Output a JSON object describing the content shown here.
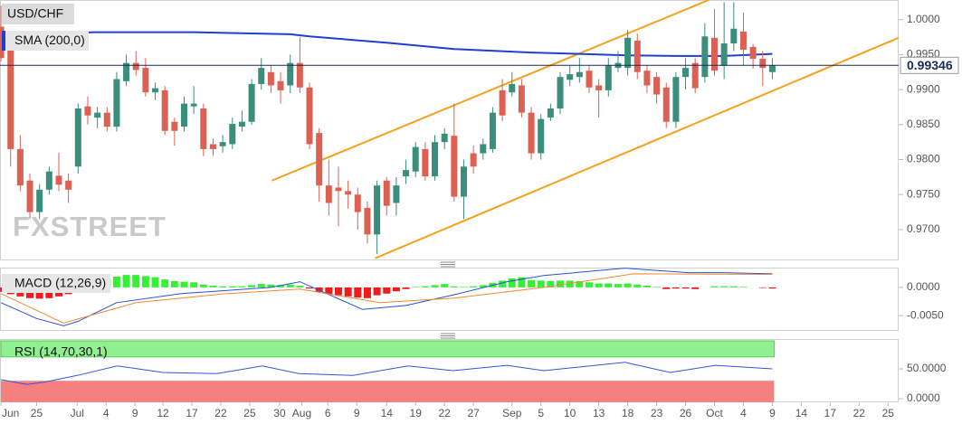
{
  "chart_data": [
    {
      "type": "candlestick",
      "title": "USD/CHF",
      "watermark": "FXSTREET",
      "up_color": "#3a8f7c",
      "down_color": "#dc6153",
      "open": [
        0.999,
        0.9964,
        0.9815,
        0.977,
        0.9725,
        0.9757,
        0.9777,
        0.977,
        0.979,
        0.9876,
        0.986,
        0.9867,
        0.9847,
        0.9912,
        0.9938,
        0.9931,
        0.9896,
        0.9899,
        0.9854,
        0.9847,
        0.9876,
        0.9873,
        0.9822,
        0.9819,
        0.9822,
        0.9847,
        0.9854,
        0.9908,
        0.9925,
        0.9912,
        0.9906,
        0.9938,
        0.9903,
        0.9838,
        0.9763,
        0.976,
        0.9755,
        0.975,
        0.9731,
        0.9693,
        0.977,
        0.9738,
        0.9776,
        0.9783,
        0.9815,
        0.9776,
        0.9825,
        0.9834,
        0.9747,
        0.9809,
        0.9809,
        0.9815,
        0.9899,
        0.9896,
        0.9906,
        0.9867,
        0.9809,
        0.986,
        0.9873,
        0.9914,
        0.9918,
        0.9927,
        0.9906,
        0.9899,
        0.9931,
        0.9931,
        0.997,
        0.9927,
        0.9918,
        0.9903,
        0.9854,
        0.9918,
        0.9938,
        0.9918,
        0.9974,
        0.9934,
        0.9966,
        0.9983,
        0.9961,
        0.9944,
        0.9925
      ],
      "high": [
        1.002,
        0.9975,
        0.9835,
        0.978,
        0.9765,
        0.979,
        0.981,
        0.978,
        0.988,
        0.989,
        0.9875,
        0.9875,
        0.9925,
        0.995,
        0.9955,
        0.9945,
        0.991,
        0.9905,
        0.986,
        0.989,
        0.9905,
        0.988,
        0.983,
        0.9835,
        0.986,
        0.987,
        0.9915,
        0.9945,
        0.9935,
        0.9925,
        0.995,
        0.9975,
        0.991,
        0.9845,
        0.98,
        0.979,
        0.977,
        0.976,
        0.974,
        0.977,
        0.9775,
        0.9775,
        0.98,
        0.9825,
        0.9825,
        0.9835,
        0.9845,
        0.988,
        0.98,
        0.982,
        0.983,
        0.9875,
        0.9915,
        0.9925,
        0.9915,
        0.9875,
        0.9865,
        0.988,
        0.9925,
        0.9935,
        0.9945,
        0.9935,
        0.9915,
        0.9945,
        0.9955,
        0.9985,
        0.998,
        0.9935,
        0.9925,
        0.991,
        0.9925,
        0.9945,
        0.9945,
        0.9995,
        1.0015,
        1.0025,
        1.0025,
        1.001,
        0.9965,
        0.9955,
        0.9945
      ],
      "low": [
        0.994,
        0.979,
        0.9755,
        0.9715,
        0.9715,
        0.975,
        0.9755,
        0.9738,
        0.978,
        0.985,
        0.9845,
        0.984,
        0.984,
        0.9905,
        0.992,
        0.989,
        0.9885,
        0.9835,
        0.982,
        0.984,
        0.9865,
        0.9805,
        0.9805,
        0.981,
        0.9815,
        0.984,
        0.985,
        0.99,
        0.9895,
        0.988,
        0.9895,
        0.9895,
        0.9815,
        0.974,
        0.972,
        0.9705,
        0.973,
        0.97,
        0.968,
        0.9665,
        0.972,
        0.972,
        0.9765,
        0.9775,
        0.977,
        0.977,
        0.9815,
        0.974,
        0.9715,
        0.978,
        0.98,
        0.981,
        0.9855,
        0.989,
        0.986,
        0.98,
        0.98,
        0.9855,
        0.9865,
        0.9905,
        0.991,
        0.9895,
        0.986,
        0.989,
        0.9925,
        0.992,
        0.9915,
        0.9895,
        0.988,
        0.9845,
        0.9845,
        0.99,
        0.9895,
        0.991,
        0.992,
        0.9915,
        0.9955,
        0.9935,
        0.993,
        0.9905,
        0.9915
      ],
      "close": [
        0.9945,
        0.9815,
        0.9763,
        0.9725,
        0.9757,
        0.9783,
        0.9764,
        0.9757,
        0.9873,
        0.9863,
        0.9867,
        0.9847,
        0.9915,
        0.9938,
        0.9928,
        0.9896,
        0.9902,
        0.9841,
        0.9841,
        0.988,
        0.988,
        0.9815,
        0.9815,
        0.9825,
        0.9851,
        0.9854,
        0.9908,
        0.9931,
        0.9906,
        0.9899,
        0.9938,
        0.9903,
        0.9822,
        0.9763,
        0.9738,
        0.9755,
        0.975,
        0.9725,
        0.9693,
        0.9763,
        0.9734,
        0.9763,
        0.9785,
        0.9818,
        0.9776,
        0.9825,
        0.9837,
        0.9747,
        0.979,
        0.979,
        0.9822,
        0.9867,
        0.9863,
        0.9908,
        0.9867,
        0.9809,
        0.9858,
        0.9873,
        0.9918,
        0.9922,
        0.9925,
        0.9903,
        0.9899,
        0.9935,
        0.9938,
        0.9974,
        0.9925,
        0.9906,
        0.9893,
        0.9854,
        0.9918,
        0.9931,
        0.9902,
        0.9976,
        0.9927,
        0.9966,
        0.9987,
        0.9957,
        0.9944,
        0.9931,
        0.99346
      ],
      "series": [
        {
          "name": "SMA (200,0)",
          "color": "#1f3fd1",
          "x": [
            0,
            10,
            20,
            30,
            32,
            40,
            47,
            55,
            60,
            65,
            70,
            75,
            80
          ],
          "values": [
            0.998,
            0.9982,
            0.9982,
            0.9979,
            0.9976,
            0.9967,
            0.9958,
            0.9953,
            0.9951,
            0.9949,
            0.9948,
            0.9948,
            0.9951
          ]
        }
      ],
      "trendlines": [
        {
          "color": "#f5a11c",
          "x": [
            28.1,
            73.4
          ],
          "y": [
            0.977,
            1.0028
          ]
        },
        {
          "color": "#f5a11c",
          "x": [
            38.8,
            93.1
          ],
          "y": [
            0.9659,
            0.9974
          ]
        }
      ],
      "xlim": [
        -0.1,
        93.1
      ],
      "ylim": [
        0.9656,
        1.0028
      ],
      "yticks": [
        {
          "value": 1,
          "label": "1.0000"
        },
        {
          "value": 0.995,
          "label": "0.9950"
        },
        {
          "value": 0.99,
          "label": "0.9900"
        },
        {
          "value": 0.985,
          "label": "0.9850"
        },
        {
          "value": 0.98,
          "label": "0.9800"
        },
        {
          "value": 0.975,
          "label": "0.9750"
        },
        {
          "value": 0.97,
          "label": "0.9700"
        }
      ],
      "xticks": [
        {
          "value": 0,
          "label": "Jun"
        },
        {
          "value": 3.7,
          "label": "25"
        },
        {
          "value": 7.9,
          "label": "Jul"
        },
        {
          "value": 10.9,
          "label": "4"
        },
        {
          "value": 13.9,
          "label": "9"
        },
        {
          "value": 16.8,
          "label": "12"
        },
        {
          "value": 19.8,
          "label": "17"
        },
        {
          "value": 22.8,
          "label": "22"
        },
        {
          "value": 25.8,
          "label": "25"
        },
        {
          "value": 28.9,
          "label": "30"
        },
        {
          "value": 31.2,
          "label": "Aug"
        },
        {
          "value": 33.9,
          "label": "6"
        },
        {
          "value": 36.9,
          "label": "9"
        },
        {
          "value": 40,
          "label": "14"
        },
        {
          "value": 43,
          "label": "19"
        },
        {
          "value": 46,
          "label": "22"
        },
        {
          "value": 49,
          "label": "27"
        },
        {
          "value": 53,
          "label": "Sep"
        },
        {
          "value": 56,
          "label": "5"
        },
        {
          "value": 59,
          "label": "10"
        },
        {
          "value": 62,
          "label": "13"
        },
        {
          "value": 65,
          "label": "18"
        },
        {
          "value": 68,
          "label": "23"
        },
        {
          "value": 71,
          "label": "26"
        },
        {
          "value": 74,
          "label": "Oct"
        },
        {
          "value": 77,
          "label": "4"
        },
        {
          "value": 80,
          "label": "9"
        },
        {
          "value": 83,
          "label": "14"
        },
        {
          "value": 86,
          "label": "17"
        },
        {
          "value": 89,
          "label": "22"
        },
        {
          "value": 92,
          "label": "25"
        }
      ]
    },
    {
      "type": "macd",
      "title": "MACD (12,26,9)",
      "up_color": "#36ef36",
      "down_color": "#ee1c1c",
      "histogram": [
        -0.0008,
        -0.0012,
        -0.0016,
        -0.0019,
        -0.002,
        -0.0019,
        -0.0016,
        -0.0012,
        0.0003,
        0.0008,
        0.0012,
        0.0015,
        0.0019,
        0.0022,
        0.0022,
        0.002,
        0.0018,
        0.0014,
        0.0011,
        0.001,
        0.0009,
        0.0005,
        0.0003,
        0.0002,
        0.0002,
        0.0002,
        0.0004,
        0.0006,
        0.0005,
        0.0004,
        0.0005,
        0.0003,
        -0.0002,
        -0.0008,
        -0.0012,
        -0.0014,
        -0.0016,
        -0.0018,
        -0.0019,
        -0.0014,
        -0.0011,
        -0.0007,
        -0.0003,
        0.0001,
        0.0002,
        0.0004,
        0.0006,
        0.0002,
        0.0001,
        0.0002,
        0.0004,
        0.0008,
        0.0012,
        0.0016,
        0.0018,
        0.0013,
        0.0012,
        0.0011,
        0.0012,
        0.0012,
        0.0011,
        0.0009,
        0.0007,
        0.0007,
        0.0006,
        0.0007,
        0.0005,
        0.0003,
        0.0001,
        -0.0003,
        -0.0002,
        -0.0002,
        -0.0003,
        0,
        0.0002,
        0.0002,
        0.0002,
        0.0001,
        0,
        -0.0001,
        -0.0002
      ],
      "series": [
        {
          "color": "#2452dc",
          "x": [
            0,
            3.7,
            6.5,
            8,
            12,
            18.7,
            28,
            31,
            37.5,
            42,
            47,
            52.5,
            56.3,
            64.7,
            71.3,
            75,
            80
          ],
          "values": [
            -0.0027,
            -0.0055,
            -0.0068,
            -0.006,
            -0.0027,
            -0.0011,
            0,
            0.001,
            -0.0039,
            -0.0032,
            -0.0013,
            0.001,
            0.0021,
            0.0034,
            0.0026,
            0.0026,
            0.0024
          ]
        },
        {
          "color": "#f08a30",
          "x": [
            0,
            6.5,
            14,
            23.4,
            31,
            39.3,
            47,
            56.3,
            65.6,
            80
          ],
          "values": [
            -0.0011,
            -0.0063,
            -0.0027,
            -0.0011,
            -0.0003,
            -0.0027,
            -0.0019,
            0,
            0.0024,
            0.0023
          ]
        }
      ],
      "ylim": [
        -0.0077,
        0.0035
      ],
      "yticks": [
        {
          "value": 0,
          "label": "0.0000"
        },
        {
          "value": -0.005,
          "label": "-0.0050"
        }
      ]
    },
    {
      "type": "rsi",
      "title": "RSI (14,70,30,1)",
      "overbought": 70,
      "oversold": 30,
      "overbought_color": "#8ef08e",
      "oversold_color": "#f58080",
      "series": [
        {
          "color": "#3355dd",
          "x": [
            0,
            2.7,
            4.6,
            7.9,
            12.1,
            16.8,
            22.4,
            27.1,
            30.9,
            36.5,
            42.2,
            46.9,
            52.5,
            56.3,
            64.7,
            69.4,
            74.1,
            80
          ],
          "values": [
            32,
            24,
            28,
            39,
            55,
            44,
            42,
            55,
            42,
            39,
            55,
            47,
            56,
            47,
            61,
            44,
            56,
            50
          ]
        }
      ],
      "ylim": [
        -6,
        100
      ],
      "yticks": [
        {
          "value": 50,
          "label": "50.0000"
        },
        {
          "value": 0,
          "label": "0.0000"
        }
      ]
    }
  ]
}
